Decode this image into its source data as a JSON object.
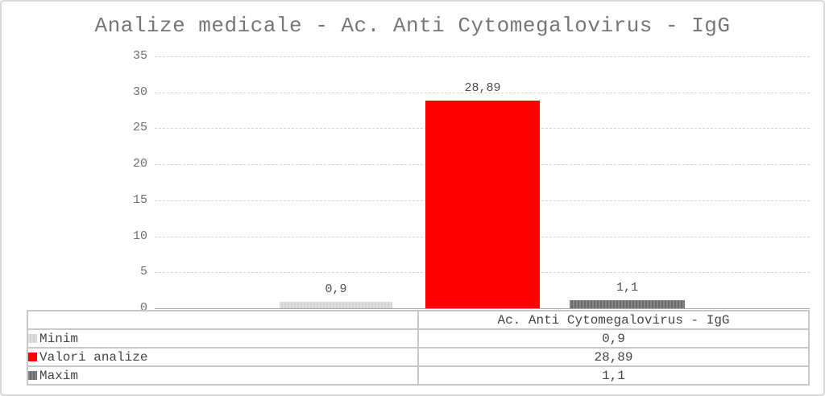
{
  "chart_data": {
    "type": "bar",
    "title": "Analize medicale - Ac. Anti Cytomegalovirus - IgG",
    "category": "Ac. Anti Cytomegalovirus - IgG",
    "categories": [
      "Ac. Anti Cytomegalovirus - IgG"
    ],
    "series": [
      {
        "name": "Minim",
        "value": 0.9,
        "display": "0,9",
        "color": "#dfdfdf",
        "color2": "#d3d3d3"
      },
      {
        "name": "Valori analize",
        "value": 28.89,
        "display": "28,89",
        "color": "#ff0000"
      },
      {
        "name": "Maxim",
        "value": 1.1,
        "display": "1,1",
        "color": "#858585",
        "color2": "#6b6b6b"
      }
    ],
    "ylim": [
      0,
      35
    ],
    "ytick_step": 5,
    "yticks": [
      "0",
      "5",
      "10",
      "15",
      "20",
      "25",
      "30",
      "35"
    ],
    "grid": "horizontal-dashed",
    "legend_position": "table-bottom-left"
  },
  "colors": {
    "panel_border": "#d9d9d9",
    "background": "#ffffff",
    "title_text": "#767676",
    "axis_text": "#6f6f6f",
    "value_label_text": "#4f4f4f",
    "table_text": "#454545",
    "gridline": "#d4d4d4",
    "axis_line": "#a8a8a8",
    "table_border": "#c8c8c8"
  }
}
